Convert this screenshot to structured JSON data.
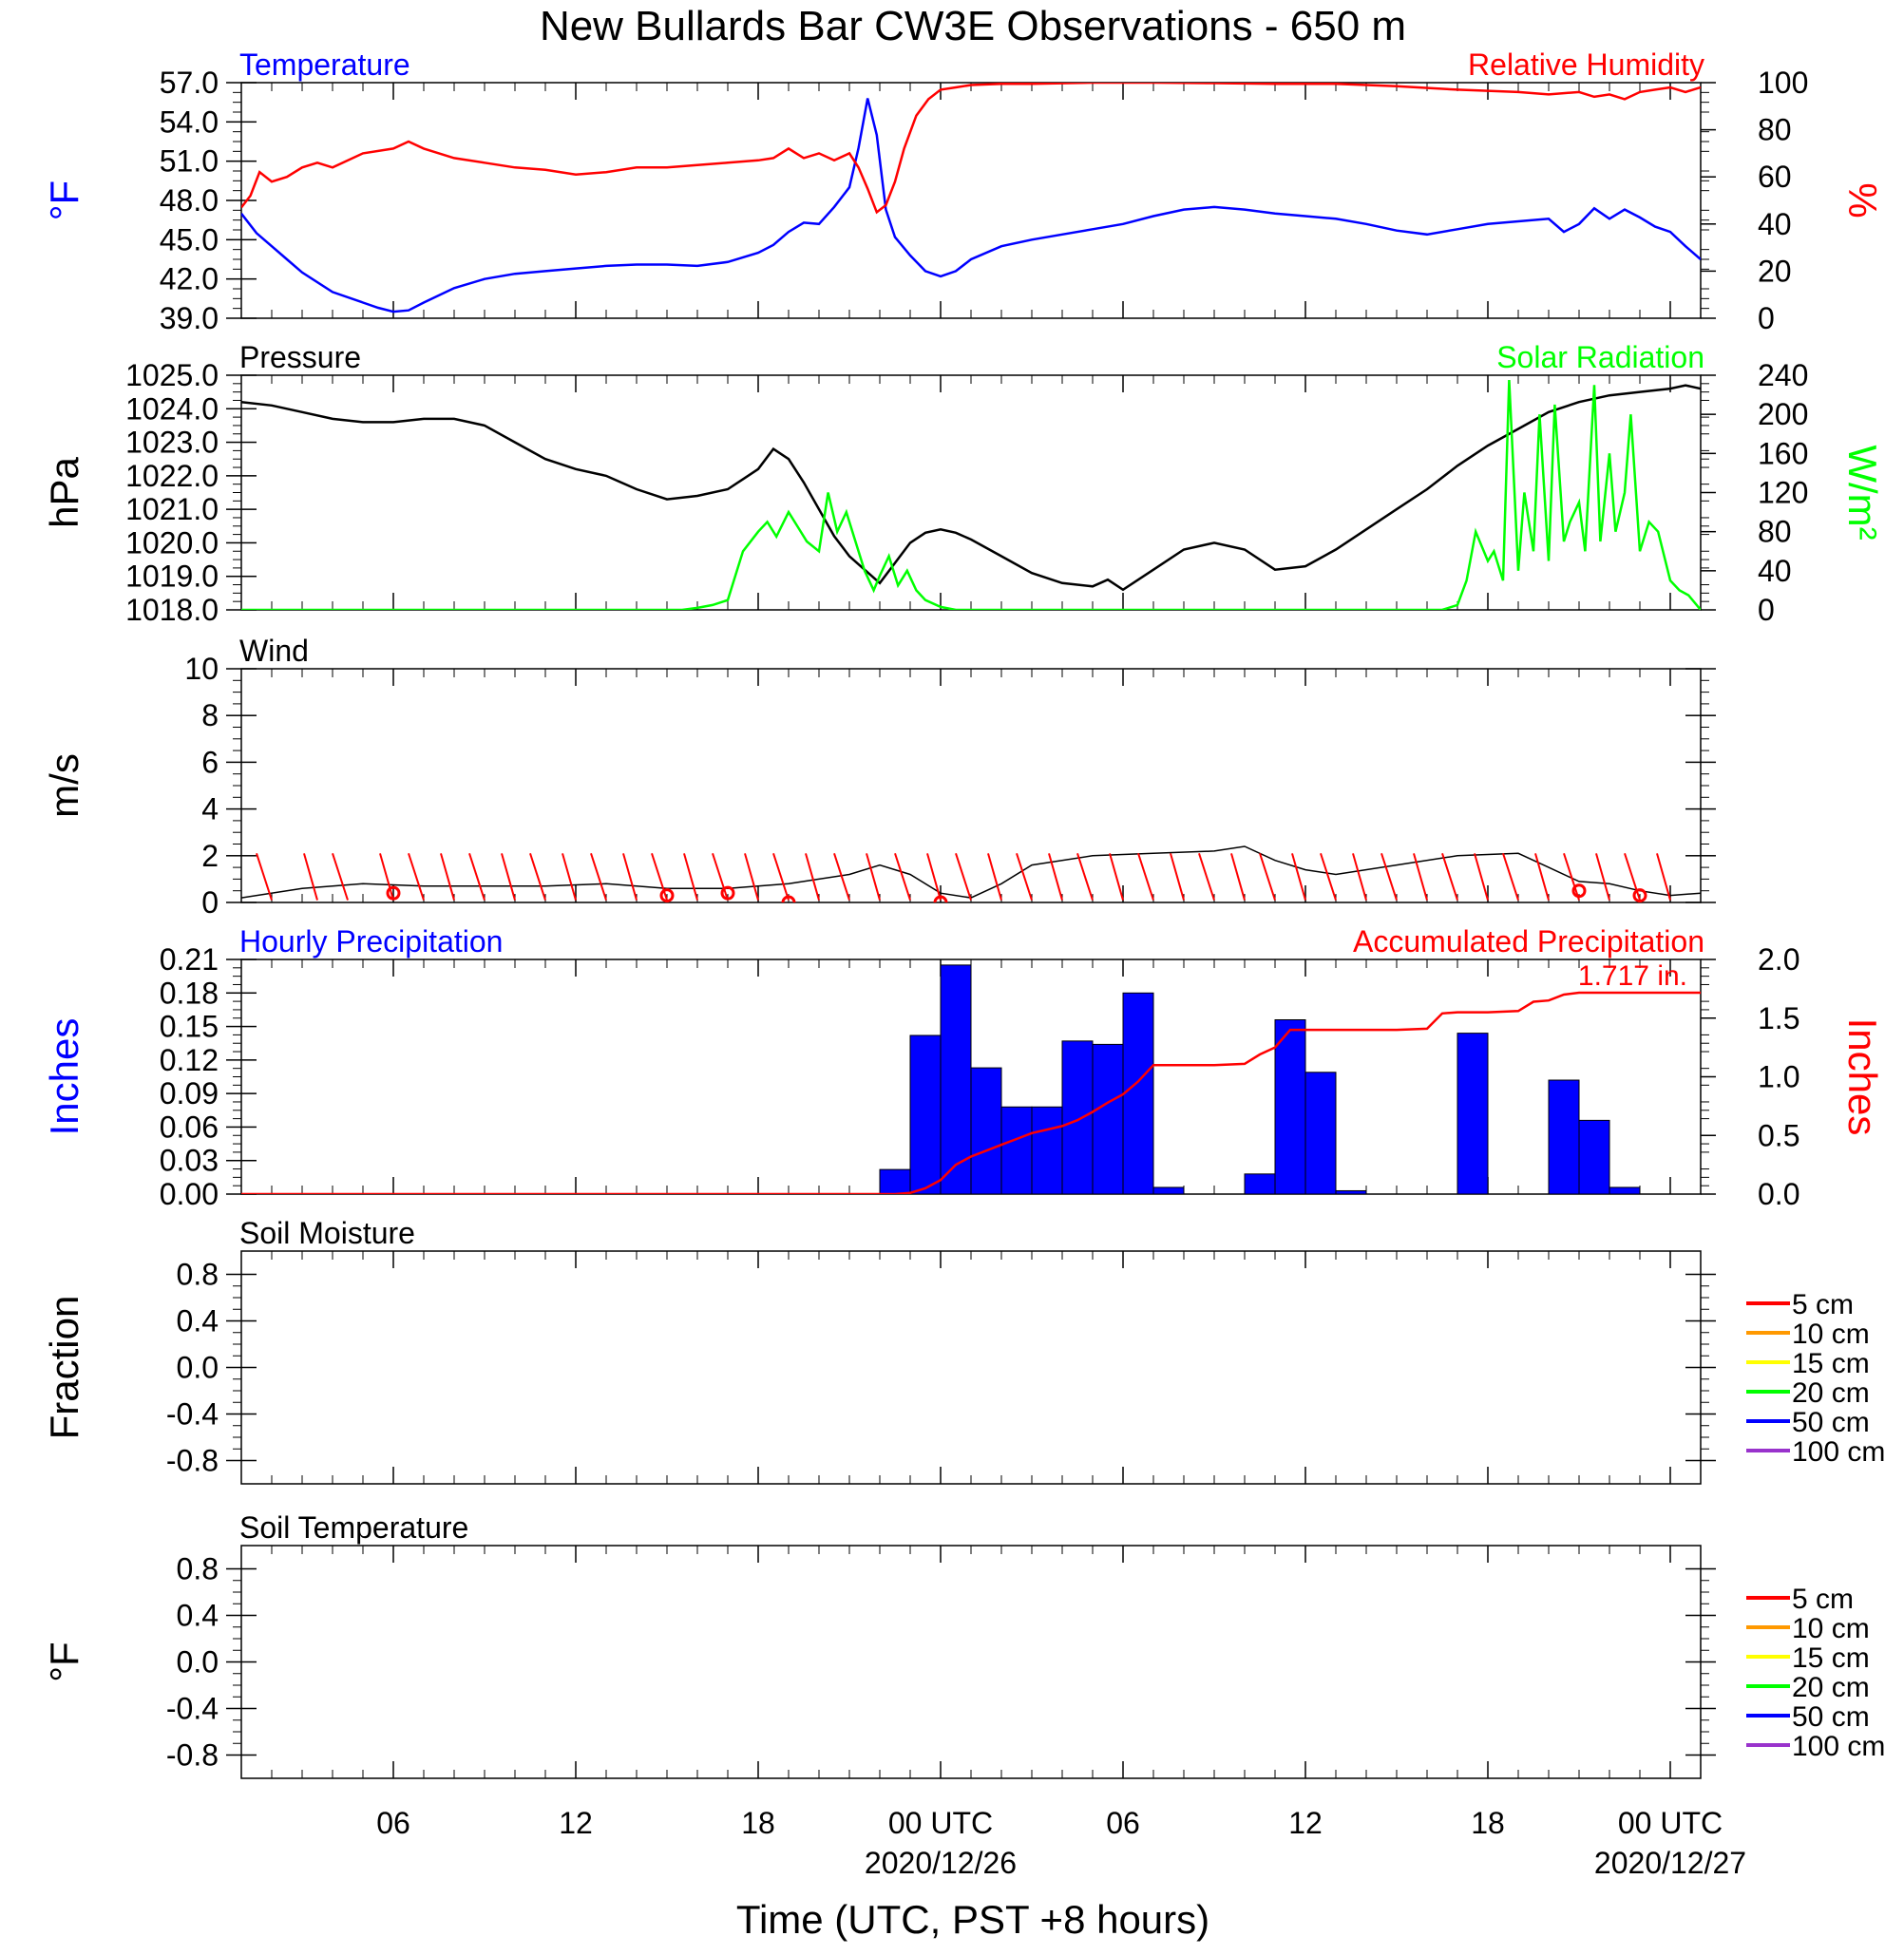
{
  "title": "New Bullards Bar CW3E Observations - 650 m",
  "colors": {
    "temperature": "#0000ff",
    "humidity": "#ff0000",
    "pressure": "#000000",
    "solar": "#00ff00",
    "wind": "#000000",
    "wind_barb": "#ff0000",
    "hourly_precip": "#0000ff",
    "accum_precip": "#ff0000",
    "soil_5": "#ff0000",
    "soil_10": "#ff9900",
    "soil_15": "#ffff00",
    "soil_20": "#00ff00",
    "soil_50": "#0000ff",
    "soil_100": "#9933cc"
  },
  "x_axis": {
    "label": "Time (UTC, PST +8 hours)",
    "range_hours": [
      0,
      48
    ],
    "ticks": [
      {
        "h": 5,
        "label": "06"
      },
      {
        "h": 11,
        "label": "12"
      },
      {
        "h": 17,
        "label": "18"
      },
      {
        "h": 23,
        "label": "00 UTC",
        "date": "2020/12/26"
      },
      {
        "h": 29,
        "label": "06"
      },
      {
        "h": 35,
        "label": "12"
      },
      {
        "h": 41,
        "label": "18"
      },
      {
        "h": 47,
        "label": "00 UTC",
        "date": "2020/12/27"
      }
    ]
  },
  "chart_data": [
    {
      "type": "line",
      "panel": "temperature-humidity",
      "left_title": "Temperature",
      "right_title": "Relative Humidity",
      "ylabel_left": "°F",
      "ylabel_right": "%",
      "ylim_left": [
        39,
        57
      ],
      "ylim_right": [
        0,
        100
      ],
      "yticks_left": [
        "39.0",
        "42.0",
        "45.0",
        "48.0",
        "51.0",
        "54.0",
        "57.0"
      ],
      "yticks_right": [
        "0",
        "20",
        "40",
        "60",
        "80",
        "100"
      ],
      "series": [
        {
          "name": "Temperature",
          "axis": "left",
          "color_key": "temperature",
          "x": [
            0,
            0.5,
            1,
            1.5,
            2,
            3,
            4,
            4.5,
            5,
            5.5,
            6,
            7,
            8,
            9,
            10,
            11,
            12,
            13,
            14,
            15,
            16,
            17,
            17.5,
            18,
            18.5,
            19,
            19.5,
            20,
            20.3,
            20.6,
            20.9,
            21.2,
            21.5,
            22,
            22.5,
            23,
            23.5,
            24,
            25,
            26,
            27,
            28,
            29,
            30,
            31,
            32,
            33,
            34,
            35,
            36,
            37,
            38,
            39,
            40,
            41,
            42,
            43,
            43.5,
            44,
            44.5,
            45,
            45.5,
            46,
            46.5,
            47,
            47.5,
            48
          ],
          "y": [
            47,
            45.5,
            44.5,
            43.5,
            42.5,
            41,
            40.2,
            39.8,
            39.5,
            39.6,
            40.2,
            41.3,
            42,
            42.4,
            42.6,
            42.8,
            43,
            43.1,
            43.1,
            43,
            43.3,
            44,
            44.6,
            45.6,
            46.3,
            46.2,
            47.5,
            49,
            52,
            55.8,
            53,
            47.3,
            45.2,
            43.8,
            42.6,
            42.2,
            42.6,
            43.5,
            44.5,
            45,
            45.4,
            45.8,
            46.2,
            46.8,
            47.3,
            47.5,
            47.3,
            47,
            46.8,
            46.6,
            46.2,
            45.7,
            45.4,
            45.8,
            46.2,
            46.4,
            46.6,
            45.6,
            46.2,
            47.4,
            46.6,
            47.3,
            46.7,
            46,
            45.6,
            44.5,
            43.5
          ]
        },
        {
          "name": "Relative Humidity",
          "axis": "right",
          "color_key": "humidity",
          "x": [
            0,
            0.3,
            0.6,
            1,
            1.5,
            2,
            2.5,
            3,
            4,
            5,
            5.5,
            6,
            7,
            8,
            9,
            10,
            11,
            12,
            13,
            14,
            15,
            16,
            17,
            17.5,
            18,
            18.5,
            19,
            19.5,
            20,
            20.3,
            20.6,
            20.9,
            21.2,
            21.5,
            21.8,
            22.2,
            22.6,
            23,
            23.5,
            24,
            25,
            26,
            28,
            30,
            32,
            34,
            36,
            38,
            40,
            42,
            43,
            44,
            44.5,
            45,
            45.5,
            46,
            46.5,
            47,
            47.5,
            48
          ],
          "y": [
            47,
            52,
            62,
            58,
            60,
            64,
            66,
            64,
            70,
            72,
            75,
            72,
            68,
            66,
            64,
            63,
            61,
            62,
            64,
            64,
            65,
            66,
            67,
            68,
            72,
            68,
            70,
            67,
            70,
            64,
            55,
            45,
            48,
            58,
            72,
            86,
            93,
            97,
            98,
            99,
            99.5,
            99.5,
            100,
            100,
            99.8,
            99.5,
            99.5,
            98.5,
            97,
            96,
            95,
            96,
            94,
            95,
            93,
            96,
            97,
            98,
            96,
            98
          ]
        }
      ]
    },
    {
      "type": "line",
      "panel": "pressure-solar",
      "left_title": "Pressure",
      "right_title": "Solar Radiation",
      "ylabel_left": "hPa",
      "ylabel_right": "W/m²",
      "ylim_left": [
        1018,
        1025
      ],
      "ylim_right": [
        0,
        240
      ],
      "yticks_left": [
        "1018.0",
        "1019.0",
        "1020.0",
        "1021.0",
        "1022.0",
        "1023.0",
        "1024.0",
        "1025.0"
      ],
      "yticks_right": [
        "0",
        "40",
        "80",
        "120",
        "160",
        "200",
        "240"
      ],
      "series": [
        {
          "name": "Pressure",
          "axis": "left",
          "color_key": "pressure",
          "x": [
            0,
            1,
            2,
            3,
            4,
            5,
            6,
            7,
            8,
            9,
            10,
            11,
            12,
            13,
            14,
            15,
            16,
            16.5,
            17,
            17.5,
            18,
            18.5,
            19,
            19.5,
            20,
            20.5,
            21,
            21.5,
            22,
            22.5,
            23,
            23.5,
            24,
            25,
            26,
            27,
            28,
            28.5,
            29,
            30,
            31,
            32,
            33,
            34,
            35,
            36,
            37,
            38,
            39,
            40,
            41,
            42,
            43,
            44,
            45,
            46,
            47,
            47.5,
            48
          ],
          "y": [
            1024.2,
            1024.1,
            1023.9,
            1023.7,
            1023.6,
            1023.6,
            1023.7,
            1023.7,
            1023.5,
            1023,
            1022.5,
            1022.2,
            1022,
            1021.6,
            1021.3,
            1021.4,
            1021.6,
            1021.9,
            1022.2,
            1022.8,
            1022.5,
            1021.8,
            1021,
            1020.2,
            1019.6,
            1019.2,
            1018.8,
            1019.4,
            1020,
            1020.3,
            1020.4,
            1020.3,
            1020.1,
            1019.6,
            1019.1,
            1018.8,
            1018.7,
            1018.9,
            1018.6,
            1019.2,
            1019.8,
            1020,
            1019.8,
            1019.2,
            1019.3,
            1019.8,
            1020.4,
            1021,
            1021.6,
            1022.3,
            1022.9,
            1023.4,
            1023.9,
            1024.2,
            1024.4,
            1024.5,
            1024.6,
            1024.7,
            1024.6
          ]
        },
        {
          "name": "Solar Radiation",
          "axis": "right",
          "color_key": "solar",
          "x": [
            0,
            14.5,
            15,
            15.5,
            16,
            16.2,
            16.5,
            17,
            17.3,
            17.6,
            18,
            18.3,
            18.6,
            19,
            19.3,
            19.6,
            19.9,
            20.2,
            20.5,
            20.8,
            21,
            21.3,
            21.6,
            21.9,
            22.2,
            22.5,
            23,
            23.5,
            24,
            39.5,
            40,
            40.3,
            40.6,
            41,
            41.2,
            41.5,
            41.7,
            42,
            42.2,
            42.5,
            42.7,
            43,
            43.2,
            43.5,
            43.7,
            44,
            44.2,
            44.5,
            44.7,
            45,
            45.2,
            45.5,
            45.7,
            46,
            46.3,
            46.6,
            47,
            47.3,
            47.6,
            48
          ],
          "y": [
            0,
            0,
            2,
            5,
            10,
            30,
            60,
            80,
            90,
            75,
            100,
            85,
            70,
            60,
            120,
            80,
            100,
            70,
            40,
            20,
            35,
            55,
            25,
            40,
            20,
            10,
            3,
            0,
            0,
            0,
            5,
            30,
            80,
            50,
            60,
            30,
            235,
            40,
            120,
            60,
            200,
            50,
            210,
            70,
            90,
            110,
            60,
            230,
            70,
            160,
            80,
            120,
            200,
            60,
            90,
            80,
            30,
            20,
            15,
            0
          ]
        }
      ]
    },
    {
      "type": "line",
      "panel": "wind",
      "left_title": "Wind",
      "ylabel_left": "m/s",
      "ylim_left": [
        0,
        10
      ],
      "yticks_left": [
        "0",
        "2",
        "4",
        "6",
        "8",
        "10"
      ],
      "series": [
        {
          "name": "Wind",
          "axis": "left",
          "color_key": "wind",
          "x": [
            0,
            2,
            4,
            6,
            8,
            10,
            12,
            14,
            16,
            18,
            19,
            20,
            21,
            22,
            23,
            24,
            25,
            26,
            28,
            30,
            32,
            33,
            34,
            35,
            36,
            38,
            40,
            42,
            43,
            44,
            45,
            46,
            47,
            48
          ],
          "y": [
            0.2,
            0.6,
            0.8,
            0.7,
            0.7,
            0.7,
            0.8,
            0.6,
            0.6,
            0.8,
            1,
            1.2,
            1.6,
            1.2,
            0.4,
            0.2,
            0.8,
            1.6,
            2,
            2.1,
            2.2,
            2.4,
            1.8,
            1.4,
            1.2,
            1.6,
            2,
            2.1,
            1.5,
            0.9,
            0.8,
            0.5,
            0.3,
            0.4
          ]
        }
      ],
      "barbs": {
        "x": [
          1,
          2.5,
          3.5,
          5,
          6,
          7,
          8,
          9,
          10,
          11,
          12,
          13,
          14,
          15,
          16,
          17,
          18,
          19,
          20,
          21,
          22,
          23,
          24,
          25,
          26,
          27,
          28,
          29,
          30,
          31,
          32,
          33,
          34,
          35,
          36,
          37,
          38,
          39,
          40,
          41,
          42,
          43,
          44,
          45,
          46,
          47
        ]
      },
      "calms": {
        "x": [
          5,
          14,
          16,
          18,
          23,
          44,
          46
        ],
        "y": [
          0.4,
          0.3,
          0.4,
          0,
          0,
          0.5,
          0.3
        ]
      }
    },
    {
      "type": "bar",
      "panel": "precipitation",
      "left_title": "Hourly Precipitation",
      "right_title": "Accumulated Precipitation",
      "ylabel_left": "Inches",
      "ylabel_right": "Inches",
      "ylim_left": [
        0,
        0.21
      ],
      "ylim_right": [
        0,
        2
      ],
      "yticks_left": [
        "0.00",
        "0.03",
        "0.06",
        "0.09",
        "0.12",
        "0.15",
        "0.18",
        "0.21"
      ],
      "yticks_right": [
        "0.0",
        "0.5",
        "1.0",
        "1.5",
        "2.0"
      ],
      "annotation": "1.717 in.",
      "bars_start_hour": [
        21,
        22,
        23,
        24,
        25,
        26,
        27,
        28,
        29,
        30,
        32,
        33,
        34,
        35,
        36,
        37,
        38,
        39,
        40,
        41,
        42,
        43,
        44,
        45
      ],
      "bars_values": [
        0.022,
        0.142,
        0.205,
        0.113,
        0.078,
        0.078,
        0.137,
        0.134,
        0.18,
        0.006,
        0,
        0.018,
        0.156,
        0.109,
        0.003,
        0,
        0,
        0,
        0.144,
        0,
        0,
        0.102,
        0.066,
        0.006
      ],
      "accum_x": [
        0,
        21.5,
        22,
        22.5,
        23,
        23.5,
        24,
        24.5,
        25,
        25.5,
        26,
        26.5,
        27,
        27.5,
        28,
        28.5,
        29,
        29.5,
        30,
        31,
        32,
        33,
        33.5,
        34,
        34.5,
        35,
        35.5,
        36,
        37,
        38,
        39,
        39.5,
        40,
        41,
        42,
        42.5,
        43,
        43.5,
        44,
        45,
        46,
        47,
        48
      ],
      "accum_y": [
        0,
        0,
        0.01,
        0.05,
        0.12,
        0.25,
        0.32,
        0.37,
        0.42,
        0.47,
        0.52,
        0.55,
        0.58,
        0.63,
        0.7,
        0.78,
        0.85,
        0.96,
        1.1,
        1.1,
        1.1,
        1.11,
        1.19,
        1.25,
        1.4,
        1.4,
        1.4,
        1.4,
        1.4,
        1.4,
        1.41,
        1.54,
        1.55,
        1.55,
        1.56,
        1.64,
        1.65,
        1.7,
        1.717,
        1.717,
        1.717,
        1.717,
        1.717
      ]
    },
    {
      "type": "line",
      "panel": "soil-moisture",
      "left_title": "Soil Moisture",
      "ylabel_left": "Fraction",
      "ylim_left": [
        -1,
        1
      ],
      "yticks_left": [
        "-0.8",
        "-0.4",
        "0.0",
        "0.4",
        "0.8"
      ],
      "legend_placement": "right",
      "legend": [
        {
          "label": "5 cm",
          "color_key": "soil_5"
        },
        {
          "label": "10 cm",
          "color_key": "soil_10"
        },
        {
          "label": "15 cm",
          "color_key": "soil_15"
        },
        {
          "label": "20 cm",
          "color_key": "soil_20"
        },
        {
          "label": "50 cm",
          "color_key": "soil_50"
        },
        {
          "label": "100 cm",
          "color_key": "soil_100"
        }
      ],
      "series": []
    },
    {
      "type": "line",
      "panel": "soil-temperature",
      "left_title": "Soil Temperature",
      "ylabel_left": "°F",
      "ylim_left": [
        -1,
        1
      ],
      "yticks_left": [
        "-0.8",
        "-0.4",
        "0.0",
        "0.4",
        "0.8"
      ],
      "legend_placement": "right",
      "legend": [
        {
          "label": "5 cm",
          "color_key": "soil_5"
        },
        {
          "label": "10 cm",
          "color_key": "soil_10"
        },
        {
          "label": "15 cm",
          "color_key": "soil_15"
        },
        {
          "label": "20 cm",
          "color_key": "soil_20"
        },
        {
          "label": "50 cm",
          "color_key": "soil_50"
        },
        {
          "label": "100 cm",
          "color_key": "soil_100"
        }
      ],
      "series": []
    }
  ]
}
